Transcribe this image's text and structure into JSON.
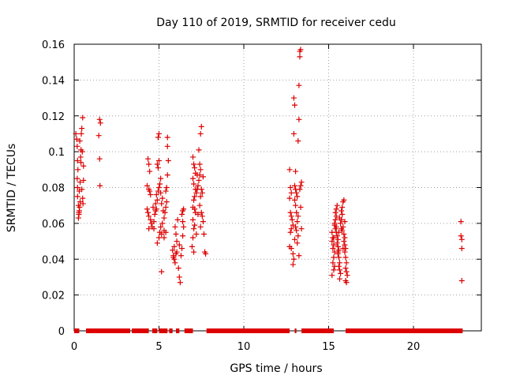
{
  "chart_data": {
    "type": "scatter",
    "title": "Day 110 of 2019, SRMTID for receiver cedu",
    "xlabel": "GPS time / hours",
    "ylabel": "SRMTID / TECUs",
    "xlim": [
      0,
      24
    ],
    "ylim": [
      0,
      0.16
    ],
    "xticks": [
      0,
      5,
      10,
      15,
      20
    ],
    "yticks": [
      0,
      0.02,
      0.04,
      0.06,
      0.08,
      0.1,
      0.12,
      0.14,
      0.16
    ],
    "xtick_labels": [
      "0",
      "5",
      "10",
      "15",
      "20"
    ],
    "ytick_labels": [
      "0",
      "0.02",
      "0.04",
      "0.06",
      "0.08",
      "0.1",
      "0.12",
      "0.14",
      "0.16"
    ],
    "grid": true,
    "marker": "+",
    "color": "#dd0000",
    "series": [
      {
        "name": "SRMTID",
        "points": [
          [
            0.1,
            0.11
          ],
          [
            0.15,
            0.107
          ],
          [
            0.18,
            0.103
          ],
          [
            0.2,
            0.095
          ],
          [
            0.22,
            0.09
          ],
          [
            0.18,
            0.085
          ],
          [
            0.2,
            0.08
          ],
          [
            0.2,
            0.075
          ],
          [
            0.25,
            0.07
          ],
          [
            0.28,
            0.066
          ],
          [
            0.3,
            0.067
          ],
          [
            0.32,
            0.069
          ],
          [
            0.35,
            0.072
          ],
          [
            0.3,
            0.078
          ],
          [
            0.35,
            0.083
          ],
          [
            0.4,
            0.094
          ],
          [
            0.4,
            0.101
          ],
          [
            0.42,
            0.11
          ],
          [
            0.45,
            0.113
          ],
          [
            0.5,
            0.119
          ],
          [
            0.48,
            0.1
          ],
          [
            0.5,
            0.074
          ],
          [
            0.52,
            0.071
          ],
          [
            0.55,
            0.084
          ],
          [
            0.55,
            0.092
          ],
          [
            0.45,
            0.079
          ],
          [
            0.25,
            0.063
          ],
          [
            0.28,
            0.065
          ],
          [
            0.33,
            0.106
          ],
          [
            0.38,
            0.097
          ],
          [
            1.5,
            0.118
          ],
          [
            1.55,
            0.116
          ],
          [
            1.45,
            0.109
          ],
          [
            1.5,
            0.096
          ],
          [
            1.52,
            0.081
          ],
          [
            4.35,
            0.096
          ],
          [
            4.4,
            0.093
          ],
          [
            4.45,
            0.089
          ],
          [
            4.3,
            0.081
          ],
          [
            4.4,
            0.079
          ],
          [
            4.45,
            0.078
          ],
          [
            4.5,
            0.076
          ],
          [
            4.3,
            0.068
          ],
          [
            4.35,
            0.066
          ],
          [
            4.4,
            0.064
          ],
          [
            4.5,
            0.062
          ],
          [
            4.55,
            0.06
          ],
          [
            4.6,
            0.058
          ],
          [
            4.4,
            0.057
          ],
          [
            4.7,
            0.057
          ],
          [
            4.75,
            0.065
          ],
          [
            4.8,
            0.067
          ],
          [
            4.85,
            0.068
          ],
          [
            4.8,
            0.071
          ],
          [
            4.9,
            0.073
          ],
          [
            4.85,
            0.076
          ],
          [
            4.95,
            0.078
          ],
          [
            5.0,
            0.08
          ],
          [
            5.05,
            0.082
          ],
          [
            5.1,
            0.085
          ],
          [
            4.95,
            0.091
          ],
          [
            4.9,
            0.093
          ],
          [
            5.0,
            0.095
          ],
          [
            4.95,
            0.108
          ],
          [
            5.0,
            0.11
          ],
          [
            5.1,
            0.077
          ],
          [
            5.15,
            0.071
          ],
          [
            5.2,
            0.074
          ],
          [
            5.25,
            0.067
          ],
          [
            5.3,
            0.063
          ],
          [
            5.2,
            0.06
          ],
          [
            5.1,
            0.058
          ],
          [
            5.05,
            0.055
          ],
          [
            5.0,
            0.052
          ],
          [
            4.9,
            0.049
          ],
          [
            5.15,
            0.054
          ],
          [
            5.3,
            0.056
          ],
          [
            5.35,
            0.066
          ],
          [
            5.4,
            0.069
          ],
          [
            5.45,
            0.072
          ],
          [
            5.4,
            0.078
          ],
          [
            5.45,
            0.08
          ],
          [
            5.5,
            0.087
          ],
          [
            5.55,
            0.095
          ],
          [
            5.5,
            0.103
          ],
          [
            5.5,
            0.108
          ],
          [
            5.3,
            0.052
          ],
          [
            5.15,
            0.033
          ],
          [
            5.4,
            0.055
          ],
          [
            4.65,
            0.069
          ],
          [
            4.7,
            0.061
          ],
          [
            5.8,
            0.045
          ],
          [
            5.85,
            0.042
          ],
          [
            5.9,
            0.04
          ],
          [
            5.95,
            0.038
          ],
          [
            6.0,
            0.043
          ],
          [
            5.9,
            0.047
          ],
          [
            6.05,
            0.05
          ],
          [
            6.0,
            0.054
          ],
          [
            5.95,
            0.058
          ],
          [
            6.1,
            0.062
          ],
          [
            6.15,
            0.035
          ],
          [
            6.2,
            0.03
          ],
          [
            6.25,
            0.027
          ],
          [
            6.3,
            0.042
          ],
          [
            6.35,
            0.046
          ],
          [
            6.4,
            0.053
          ],
          [
            6.45,
            0.058
          ],
          [
            6.4,
            0.061
          ],
          [
            6.35,
            0.065
          ],
          [
            6.45,
            0.068
          ],
          [
            6.4,
            0.067
          ],
          [
            5.85,
            0.041
          ],
          [
            6.05,
            0.044
          ],
          [
            6.2,
            0.048
          ],
          [
            7.0,
            0.097
          ],
          [
            7.05,
            0.093
          ],
          [
            7.1,
            0.091
          ],
          [
            7.15,
            0.088
          ],
          [
            7.0,
            0.085
          ],
          [
            7.05,
            0.082
          ],
          [
            7.15,
            0.079
          ],
          [
            7.2,
            0.077
          ],
          [
            7.1,
            0.075
          ],
          [
            7.05,
            0.073
          ],
          [
            7.0,
            0.069
          ],
          [
            7.1,
            0.068
          ],
          [
            7.15,
            0.066
          ],
          [
            7.0,
            0.062
          ],
          [
            7.1,
            0.059
          ],
          [
            7.05,
            0.057
          ],
          [
            7.2,
            0.054
          ],
          [
            7.0,
            0.052
          ],
          [
            6.95,
            0.047
          ],
          [
            7.05,
            0.044
          ],
          [
            7.25,
            0.079
          ],
          [
            7.3,
            0.081
          ],
          [
            7.35,
            0.084
          ],
          [
            7.4,
            0.087
          ],
          [
            7.45,
            0.09
          ],
          [
            7.4,
            0.093
          ],
          [
            7.35,
            0.101
          ],
          [
            7.45,
            0.11
          ],
          [
            7.5,
            0.114
          ],
          [
            7.5,
            0.079
          ],
          [
            7.55,
            0.077
          ],
          [
            7.45,
            0.075
          ],
          [
            7.4,
            0.07
          ],
          [
            7.5,
            0.066
          ],
          [
            7.55,
            0.064
          ],
          [
            7.6,
            0.061
          ],
          [
            7.45,
            0.058
          ],
          [
            7.65,
            0.054
          ],
          [
            7.7,
            0.044
          ],
          [
            7.75,
            0.043
          ],
          [
            7.3,
            0.065
          ],
          [
            7.25,
            0.087
          ],
          [
            7.6,
            0.086
          ],
          [
            12.7,
            0.09
          ],
          [
            12.75,
            0.08
          ],
          [
            12.8,
            0.077
          ],
          [
            12.7,
            0.074
          ],
          [
            12.75,
            0.066
          ],
          [
            12.8,
            0.064
          ],
          [
            12.85,
            0.062
          ],
          [
            12.9,
            0.059
          ],
          [
            12.8,
            0.057
          ],
          [
            12.75,
            0.055
          ],
          [
            12.7,
            0.047
          ],
          [
            12.8,
            0.046
          ],
          [
            12.9,
            0.043
          ],
          [
            12.95,
            0.04
          ],
          [
            12.9,
            0.037
          ],
          [
            12.95,
            0.11
          ],
          [
            13.0,
            0.126
          ],
          [
            12.95,
            0.13
          ],
          [
            13.05,
            0.089
          ],
          [
            13.0,
            0.081
          ],
          [
            13.05,
            0.079
          ],
          [
            13.1,
            0.077
          ],
          [
            13.15,
            0.075
          ],
          [
            13.0,
            0.073
          ],
          [
            13.05,
            0.07
          ],
          [
            13.1,
            0.066
          ],
          [
            13.2,
            0.064
          ],
          [
            13.15,
            0.061
          ],
          [
            13.05,
            0.058
          ],
          [
            13.1,
            0.056
          ],
          [
            13.2,
            0.053
          ],
          [
            13.0,
            0.051
          ],
          [
            13.15,
            0.049
          ],
          [
            13.25,
            0.042
          ],
          [
            13.2,
            0.106
          ],
          [
            13.25,
            0.118
          ],
          [
            13.25,
            0.137
          ],
          [
            13.3,
            0.153
          ],
          [
            13.3,
            0.156
          ],
          [
            13.35,
            0.157
          ],
          [
            13.35,
            0.081
          ],
          [
            13.3,
            0.079
          ],
          [
            13.4,
            0.083
          ],
          [
            13.35,
            0.069
          ],
          [
            13.4,
            0.057
          ],
          [
            15.2,
            0.055
          ],
          [
            15.25,
            0.052
          ],
          [
            15.2,
            0.05
          ],
          [
            15.3,
            0.048
          ],
          [
            15.25,
            0.046
          ],
          [
            15.35,
            0.044
          ],
          [
            15.3,
            0.041
          ],
          [
            15.25,
            0.038
          ],
          [
            15.35,
            0.036
          ],
          [
            15.3,
            0.034
          ],
          [
            15.2,
            0.031
          ],
          [
            15.35,
            0.059
          ],
          [
            15.4,
            0.062
          ],
          [
            15.45,
            0.064
          ],
          [
            15.4,
            0.066
          ],
          [
            15.45,
            0.068
          ],
          [
            15.5,
            0.07
          ],
          [
            15.4,
            0.057
          ],
          [
            15.45,
            0.055
          ],
          [
            15.5,
            0.053
          ],
          [
            15.55,
            0.051
          ],
          [
            15.5,
            0.049
          ],
          [
            15.55,
            0.047
          ],
          [
            15.6,
            0.045
          ],
          [
            15.55,
            0.043
          ],
          [
            15.6,
            0.041
          ],
          [
            15.65,
            0.038
          ],
          [
            15.6,
            0.036
          ],
          [
            15.65,
            0.034
          ],
          [
            15.7,
            0.032
          ],
          [
            15.65,
            0.029
          ],
          [
            15.7,
            0.06
          ],
          [
            15.75,
            0.062
          ],
          [
            15.8,
            0.065
          ],
          [
            15.75,
            0.067
          ],
          [
            15.8,
            0.069
          ],
          [
            15.85,
            0.072
          ],
          [
            15.9,
            0.073
          ],
          [
            15.85,
            0.058
          ],
          [
            15.8,
            0.056
          ],
          [
            15.9,
            0.054
          ],
          [
            15.95,
            0.052
          ],
          [
            15.9,
            0.05
          ],
          [
            15.95,
            0.048
          ],
          [
            16.0,
            0.046
          ],
          [
            15.95,
            0.044
          ],
          [
            16.0,
            0.041
          ],
          [
            16.05,
            0.038
          ],
          [
            16.0,
            0.035
          ],
          [
            16.05,
            0.033
          ],
          [
            16.1,
            0.031
          ],
          [
            16.0,
            0.028
          ],
          [
            16.05,
            0.027
          ],
          [
            15.35,
            0.06
          ],
          [
            15.45,
            0.058
          ],
          [
            15.65,
            0.063
          ],
          [
            15.75,
            0.057
          ],
          [
            15.85,
            0.046
          ],
          [
            15.55,
            0.044
          ],
          [
            15.95,
            0.061
          ],
          [
            15.3,
            0.052
          ],
          [
            15.6,
            0.055
          ],
          [
            22.8,
            0.061
          ],
          [
            22.8,
            0.053
          ],
          [
            22.85,
            0.051
          ],
          [
            22.85,
            0.046
          ],
          [
            22.85,
            0.028
          ]
        ]
      }
    ],
    "zero_segments": [
      [
        0.0,
        0.3
      ],
      [
        0.7,
        3.3
      ],
      [
        3.4,
        4.4
      ],
      [
        4.6,
        4.9
      ],
      [
        5.0,
        5.5
      ],
      [
        5.6,
        5.8
      ],
      [
        6.0,
        6.2
      ],
      [
        6.5,
        7.0
      ],
      [
        7.8,
        12.7
      ],
      [
        13.0,
        13.1
      ],
      [
        13.4,
        15.3
      ],
      [
        16.0,
        22.9
      ]
    ]
  }
}
